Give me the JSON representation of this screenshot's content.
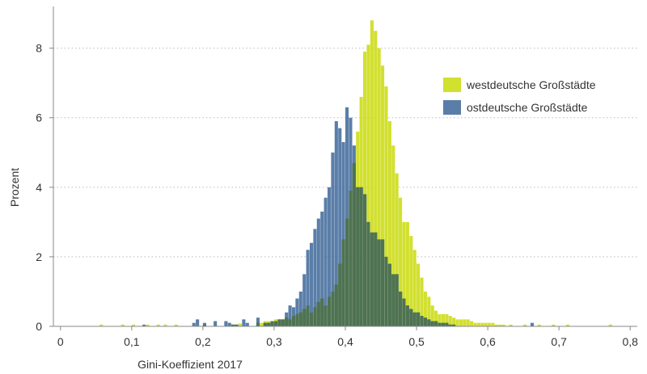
{
  "chart_data": {
    "type": "bar",
    "xlabel": "Gini-Koeffizient 2017",
    "ylabel": "Prozent",
    "xlim": [
      -0.01,
      0.81
    ],
    "ylim": [
      0,
      9.2
    ],
    "x_ticks": [
      {
        "value": 0,
        "label": "0"
      },
      {
        "value": 0.1,
        "label": "0,1"
      },
      {
        "value": 0.2,
        "label": "0,2"
      },
      {
        "value": 0.3,
        "label": "0,3"
      },
      {
        "value": 0.4,
        "label": "0,4"
      },
      {
        "value": 0.5,
        "label": "0,5"
      },
      {
        "value": 0.6,
        "label": "0,6"
      },
      {
        "value": 0.7,
        "label": "0,7"
      },
      {
        "value": 0.8,
        "label": "0,8"
      }
    ],
    "y_ticks": [
      {
        "value": 0,
        "label": "0"
      },
      {
        "value": 2,
        "label": "2"
      },
      {
        "value": 4,
        "label": "4"
      },
      {
        "value": 6,
        "label": "6"
      },
      {
        "value": 8,
        "label": "8"
      }
    ],
    "grid": "horizontal dotted",
    "legend_position": "top-right",
    "bin_width": 0.005,
    "overlap_color": "#4f7352",
    "series": [
      {
        "name": "westdeutsche Großstädte",
        "color": "#d2e02f",
        "bins": [
          [
            0.055,
            0.05
          ],
          [
            0.085,
            0.05
          ],
          [
            0.1,
            0.05
          ],
          [
            0.12,
            0.05
          ],
          [
            0.135,
            0.05
          ],
          [
            0.145,
            0.05
          ],
          [
            0.16,
            0.05
          ],
          [
            0.2,
            0.05
          ],
          [
            0.24,
            0.05
          ],
          [
            0.245,
            0.05
          ],
          [
            0.25,
            0.08
          ],
          [
            0.275,
            0.1
          ],
          [
            0.28,
            0.1
          ],
          [
            0.285,
            0.15
          ],
          [
            0.29,
            0.15
          ],
          [
            0.295,
            0.15
          ],
          [
            0.3,
            0.2
          ],
          [
            0.305,
            0.2
          ],
          [
            0.31,
            0.2
          ],
          [
            0.315,
            0.25
          ],
          [
            0.32,
            0.2
          ],
          [
            0.325,
            0.3
          ],
          [
            0.33,
            0.35
          ],
          [
            0.335,
            0.4
          ],
          [
            0.34,
            0.5
          ],
          [
            0.345,
            0.6
          ],
          [
            0.35,
            0.4
          ],
          [
            0.355,
            0.55
          ],
          [
            0.36,
            0.7
          ],
          [
            0.365,
            0.8
          ],
          [
            0.37,
            0.6
          ],
          [
            0.375,
            0.85
          ],
          [
            0.38,
            1.0
          ],
          [
            0.385,
            1.2
          ],
          [
            0.39,
            1.8
          ],
          [
            0.395,
            2.5
          ],
          [
            0.4,
            3.1
          ],
          [
            0.405,
            3.9
          ],
          [
            0.41,
            4.7
          ],
          [
            0.415,
            5.6
          ],
          [
            0.42,
            6.6
          ],
          [
            0.425,
            7.9
          ],
          [
            0.43,
            8.1
          ],
          [
            0.435,
            8.8
          ],
          [
            0.44,
            8.5
          ],
          [
            0.445,
            8.0
          ],
          [
            0.45,
            7.5
          ],
          [
            0.455,
            6.9
          ],
          [
            0.46,
            5.9
          ],
          [
            0.465,
            5.2
          ],
          [
            0.47,
            4.4
          ],
          [
            0.475,
            3.7
          ],
          [
            0.48,
            3.0
          ],
          [
            0.485,
            3.0
          ],
          [
            0.49,
            2.6
          ],
          [
            0.495,
            2.2
          ],
          [
            0.5,
            1.8
          ],
          [
            0.505,
            1.4
          ],
          [
            0.51,
            1.0
          ],
          [
            0.515,
            0.85
          ],
          [
            0.52,
            0.6
          ],
          [
            0.525,
            0.45
          ],
          [
            0.53,
            0.35
          ],
          [
            0.535,
            0.35
          ],
          [
            0.54,
            0.35
          ],
          [
            0.545,
            0.3
          ],
          [
            0.55,
            0.25
          ],
          [
            0.555,
            0.2
          ],
          [
            0.56,
            0.2
          ],
          [
            0.565,
            0.2
          ],
          [
            0.57,
            0.2
          ],
          [
            0.575,
            0.15
          ],
          [
            0.58,
            0.1
          ],
          [
            0.585,
            0.1
          ],
          [
            0.59,
            0.1
          ],
          [
            0.595,
            0.1
          ],
          [
            0.6,
            0.1
          ],
          [
            0.605,
            0.1
          ],
          [
            0.61,
            0.05
          ],
          [
            0.615,
            0.05
          ],
          [
            0.62,
            0.05
          ],
          [
            0.63,
            0.05
          ],
          [
            0.65,
            0.05
          ],
          [
            0.67,
            0.05
          ],
          [
            0.69,
            0.05
          ],
          [
            0.71,
            0.05
          ],
          [
            0.77,
            0.05
          ]
        ]
      },
      {
        "name": "ostdeutsche Großstädte",
        "color": "#5a7ea8",
        "bins": [
          [
            0.115,
            0.05
          ],
          [
            0.185,
            0.1
          ],
          [
            0.19,
            0.2
          ],
          [
            0.2,
            0.1
          ],
          [
            0.215,
            0.15
          ],
          [
            0.23,
            0.15
          ],
          [
            0.235,
            0.1
          ],
          [
            0.24,
            0.05
          ],
          [
            0.245,
            0.05
          ],
          [
            0.255,
            0.2
          ],
          [
            0.26,
            0.1
          ],
          [
            0.275,
            0.25
          ],
          [
            0.285,
            0.1
          ],
          [
            0.29,
            0.1
          ],
          [
            0.295,
            0.15
          ],
          [
            0.3,
            0.15
          ],
          [
            0.305,
            0.2
          ],
          [
            0.31,
            0.2
          ],
          [
            0.315,
            0.4
          ],
          [
            0.32,
            0.6
          ],
          [
            0.325,
            0.55
          ],
          [
            0.33,
            0.8
          ],
          [
            0.335,
            1.0
          ],
          [
            0.34,
            1.5
          ],
          [
            0.345,
            2.2
          ],
          [
            0.35,
            2.4
          ],
          [
            0.355,
            2.8
          ],
          [
            0.36,
            3.1
          ],
          [
            0.365,
            3.3
          ],
          [
            0.37,
            3.7
          ],
          [
            0.375,
            4.0
          ],
          [
            0.38,
            5.0
          ],
          [
            0.385,
            5.9
          ],
          [
            0.39,
            5.7
          ],
          [
            0.395,
            5.3
          ],
          [
            0.4,
            6.3
          ],
          [
            0.405,
            6.0
          ],
          [
            0.41,
            5.2
          ],
          [
            0.415,
            4.0
          ],
          [
            0.42,
            4.0
          ],
          [
            0.425,
            3.8
          ],
          [
            0.43,
            3.0
          ],
          [
            0.435,
            2.7
          ],
          [
            0.44,
            2.7
          ],
          [
            0.445,
            2.5
          ],
          [
            0.45,
            2.5
          ],
          [
            0.455,
            2.0
          ],
          [
            0.46,
            1.8
          ],
          [
            0.465,
            1.5
          ],
          [
            0.47,
            1.5
          ],
          [
            0.475,
            1.0
          ],
          [
            0.48,
            0.8
          ],
          [
            0.485,
            0.6
          ],
          [
            0.49,
            0.5
          ],
          [
            0.495,
            0.4
          ],
          [
            0.5,
            0.4
          ],
          [
            0.505,
            0.3
          ],
          [
            0.51,
            0.25
          ],
          [
            0.515,
            0.2
          ],
          [
            0.52,
            0.15
          ],
          [
            0.525,
            0.15
          ],
          [
            0.53,
            0.1
          ],
          [
            0.535,
            0.1
          ],
          [
            0.54,
            0.1
          ],
          [
            0.545,
            0.05
          ],
          [
            0.55,
            0.05
          ],
          [
            0.66,
            0.1
          ]
        ]
      }
    ]
  }
}
